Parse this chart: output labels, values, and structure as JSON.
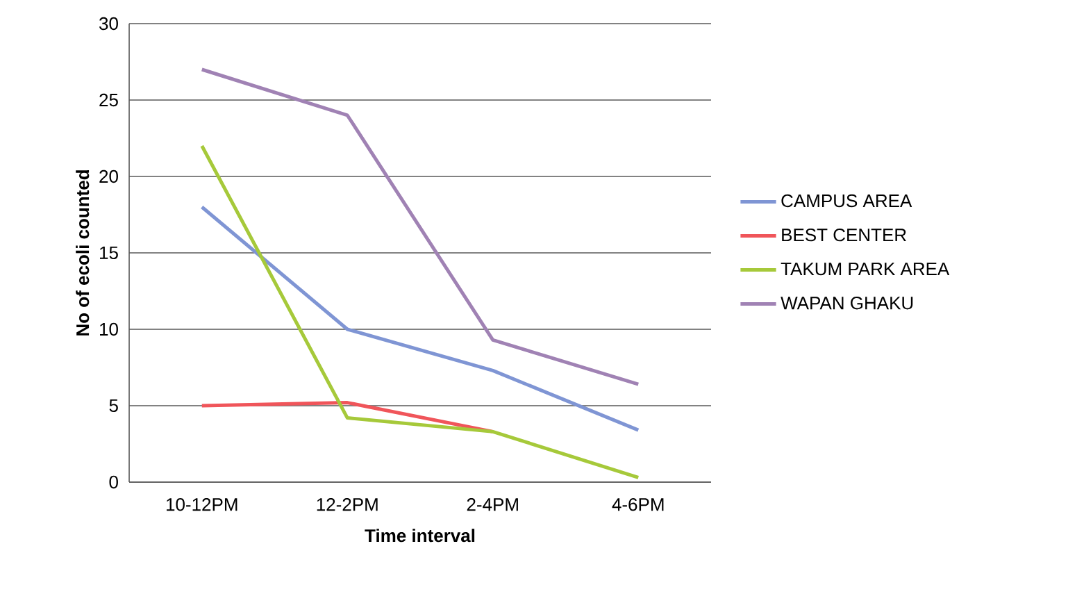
{
  "chart_data": {
    "type": "line",
    "xlabel": "Time interval",
    "ylabel": "No of ecoli counted",
    "categories": [
      "10-12PM",
      "12-2PM",
      "2-4PM",
      "4-6PM"
    ],
    "series": [
      {
        "name": "CAMPUS AREA",
        "color": "#7f95d4",
        "values": [
          18,
          10,
          7.3,
          3.4
        ]
      },
      {
        "name": "BEST CENTER",
        "color": "#f0555a",
        "values": [
          5,
          5.2,
          3.3,
          null
        ]
      },
      {
        "name": "TAKUM PARK AREA",
        "color": "#a6c93a",
        "values": [
          22,
          4.2,
          3.3,
          0.3
        ]
      },
      {
        "name": "WAPAN GHAKU",
        "color": "#a082b4",
        "values": [
          27,
          24,
          9.3,
          6.4
        ]
      }
    ],
    "ylim": [
      0,
      30
    ],
    "yticks": [
      0,
      5,
      10,
      15,
      20,
      25,
      30
    ],
    "grid": "y",
    "legend": "right",
    "marker": "none",
    "line_style": "solid"
  }
}
